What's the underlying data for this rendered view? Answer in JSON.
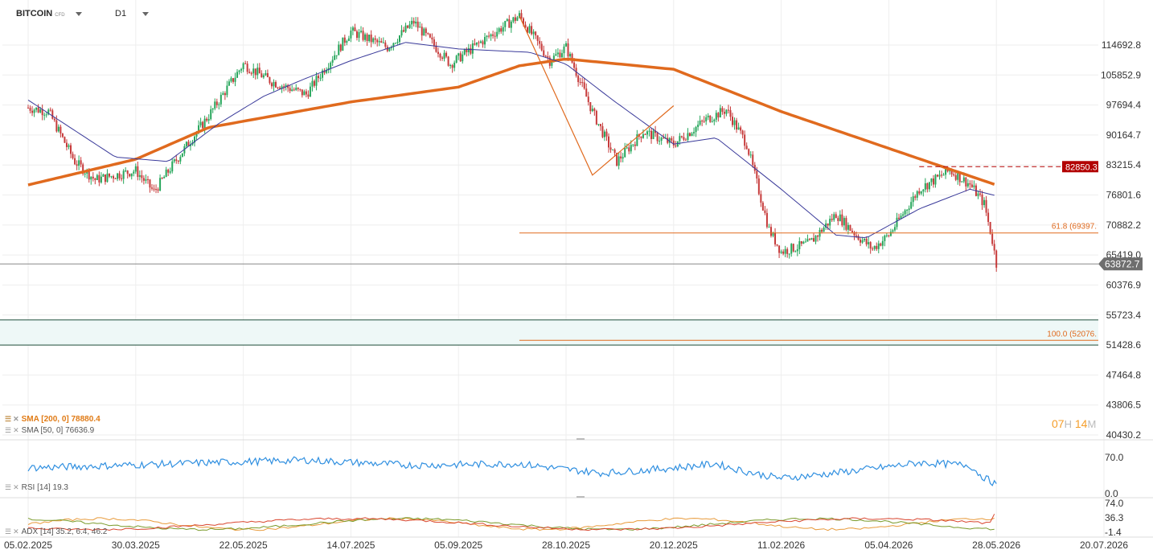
{
  "header": {
    "symbol": "BITCOIN",
    "instrument_type": "CFD",
    "timeframe": "D1"
  },
  "legend": {
    "sma200": "SMA [200, 0] 78880.4",
    "sma50": "SMA [50, 0] 76636.9",
    "rsi": "RSI [14] 19.3",
    "adx": "ADX [14] 35.2, 6.4, 46.2"
  },
  "timer": {
    "hours": "07",
    "h_unit": "H",
    "minutes": "14",
    "m_unit": "M"
  },
  "colors": {
    "up": "#26a65b",
    "down": "#c63a3a",
    "sma200": "#e06a1e",
    "sma50": "#3a3a9a",
    "rsi": "#2f8fe0",
    "fib": "#e06a1e",
    "support": "#1f4d3a",
    "current": "#888888",
    "badge_red": "#b20000",
    "badge_gray": "#6e6e6e"
  },
  "chart_data": [
    {
      "type": "candlestick",
      "title": "BITCOIN",
      "x_ticks": [
        "05.02.2025",
        "30.03.2025",
        "22.05.2025",
        "14.07.2025",
        "05.09.2025",
        "28.10.2025",
        "20.12.2025",
        "11.02.2026",
        "05.04.2026",
        "28.05.2026",
        "20.07.2026"
      ],
      "y_ticks": [
        114692.8,
        105852.9,
        97694.4,
        90164.7,
        83215.4,
        76801.6,
        70882.2,
        65419.0,
        60376.9,
        55723.4,
        51428.6,
        47464.8,
        43806.5,
        40430.2
      ],
      "y_range": [
        40430.2,
        114692.8
      ],
      "x_range": [
        "05.02.2025",
        "20.07.2026"
      ],
      "log_scale": true,
      "grid": true,
      "current_price": 63872.7,
      "current_price_label": "63872.7",
      "fib_levels": [
        {
          "label": "61.8 (69397.",
          "value": 69397,
          "from_date": "05.10.2025"
        },
        {
          "label": "100.0 (52076.",
          "value": 52076,
          "from_date": "05.10.2025"
        }
      ],
      "resistance": {
        "value": 82850,
        "label": "82850.3",
        "from_date": "20.04.2026"
      },
      "support_zone": [
        51428.6,
        55000
      ],
      "abc_lines": [
        [
          [
            "05.10.2025",
            124000
          ],
          [
            "10.11.2025",
            81000
          ],
          [
            "20.12.2025",
            97500
          ]
        ]
      ],
      "sma200_points": [
        [
          "05.02.2025",
          78900
        ],
        [
          "30.03.2025",
          84500
        ],
        [
          "05.05.2025",
          92000
        ],
        [
          "14.07.2025",
          98500
        ],
        [
          "05.09.2025",
          102500
        ],
        [
          "05.10.2025",
          108500
        ],
        [
          "28.10.2025",
          110500
        ],
        [
          "20.12.2025",
          107500
        ],
        [
          "11.02.2026",
          96000
        ],
        [
          "05.04.2026",
          87000
        ],
        [
          "05.05.2026",
          82300
        ],
        [
          "28.05.2026",
          78880
        ]
      ],
      "sma50_points": [
        [
          "05.02.2025",
          99000
        ],
        [
          "20.03.2025",
          85000
        ],
        [
          "15.04.2025",
          84000
        ],
        [
          "10.05.2025",
          93000
        ],
        [
          "01.06.2025",
          100000
        ],
        [
          "20.06.2025",
          104500
        ],
        [
          "14.07.2025",
          110000
        ],
        [
          "10.08.2025",
          115500
        ],
        [
          "05.09.2025",
          113500
        ],
        [
          "10.10.2025",
          112500
        ],
        [
          "28.10.2025",
          109000
        ],
        [
          "20.11.2025",
          99000
        ],
        [
          "20.12.2025",
          88000
        ],
        [
          "10.01.2026",
          89500
        ],
        [
          "11.02.2026",
          78000
        ],
        [
          "10.03.2026",
          69000
        ],
        [
          "25.03.2026",
          68500
        ],
        [
          "20.04.2026",
          74000
        ],
        [
          "15.05.2026",
          78000
        ],
        [
          "28.05.2026",
          76637
        ]
      ],
      "price_path": [
        [
          "05.02.2025",
          97000
        ],
        [
          "15.02.2025",
          96000
        ],
        [
          "28.02.2025",
          84000
        ],
        [
          "10.03.2025",
          80000
        ],
        [
          "30.03.2025",
          82000
        ],
        [
          "08.04.2025",
          77500
        ],
        [
          "20.04.2025",
          85000
        ],
        [
          "05.05.2025",
          95000
        ],
        [
          "22.05.2025",
          109000
        ],
        [
          "05.06.2025",
          104000
        ],
        [
          "22.06.2025",
          100500
        ],
        [
          "14.07.2025",
          119000
        ],
        [
          "01.08.2025",
          114000
        ],
        [
          "14.08.2025",
          122000
        ],
        [
          "01.09.2025",
          109000
        ],
        [
          "18.09.2025",
          116500
        ],
        [
          "05.10.2025",
          124000
        ],
        [
          "20.10.2025",
          110000
        ],
        [
          "28.10.2025",
          114000
        ],
        [
          "10.11.2025",
          96000
        ],
        [
          "22.11.2025",
          84000
        ],
        [
          "05.12.2025",
          91000
        ],
        [
          "20.12.2025",
          88000
        ],
        [
          "05.01.2026",
          94000
        ],
        [
          "15.01.2026",
          96500
        ],
        [
          "25.01.2026",
          88000
        ],
        [
          "05.02.2026",
          70000
        ],
        [
          "11.02.2026",
          66000
        ],
        [
          "25.02.2026",
          67500
        ],
        [
          "10.03.2026",
          73000
        ],
        [
          "20.03.2026",
          69000
        ],
        [
          "28.03.2026",
          66500
        ],
        [
          "05.04.2026",
          69000
        ],
        [
          "20.04.2026",
          78000
        ],
        [
          "05.05.2026",
          82000
        ],
        [
          "15.05.2026",
          79000
        ],
        [
          "22.05.2026",
          75000
        ],
        [
          "26.05.2026",
          68000
        ],
        [
          "28.05.2026",
          63873
        ]
      ]
    },
    {
      "type": "line",
      "title": "RSI [14] 19.3",
      "y_ticks": [
        70.0,
        0.0
      ],
      "y_range": [
        0,
        100
      ],
      "last": 19.3
    },
    {
      "type": "line",
      "title": "ADX [14] 35.2, 6.4, 46.2",
      "y_ticks": [
        74.0,
        36.3,
        -1.4
      ],
      "y_range": [
        -1.4,
        74.0
      ],
      "series": [
        {
          "name": "ADX",
          "last": 35.2
        },
        {
          "name": "+DI",
          "last": 6.4
        },
        {
          "name": "-DI",
          "last": 46.2
        }
      ]
    }
  ]
}
